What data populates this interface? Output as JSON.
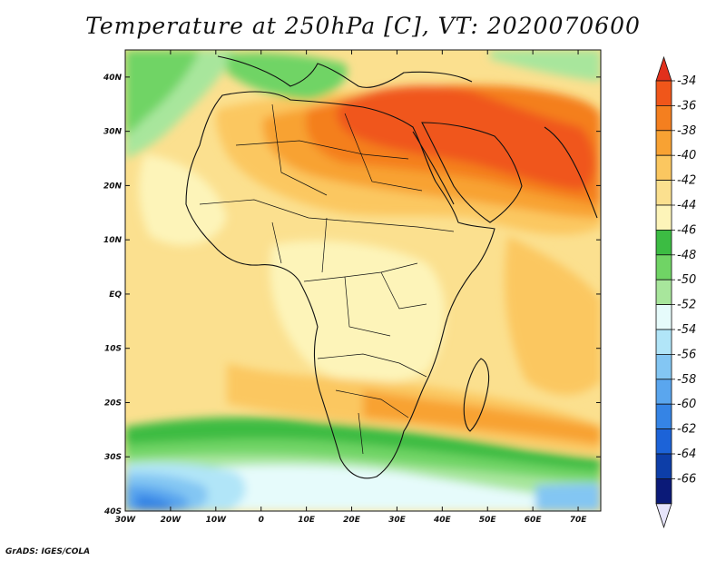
{
  "title": "Temperature at 250hPa [C], VT: 2020070600",
  "credit": "GrADS: IGES/COLA",
  "map": {
    "lon_range": [
      -30,
      75
    ],
    "lat_range": [
      -40,
      45
    ],
    "x_ticks": [
      "30W",
      "20W",
      "10W",
      "0",
      "10E",
      "20E",
      "30E",
      "40E",
      "50E",
      "60E",
      "70E"
    ],
    "y_ticks": [
      "40N",
      "30N",
      "20N",
      "10N",
      "EQ",
      "10S",
      "20S",
      "30S",
      "40S"
    ]
  },
  "colorbar": {
    "labels": [
      "-34",
      "-36",
      "-38",
      "-40",
      "-42",
      "-44",
      "-46",
      "-48",
      "-50",
      "-52",
      "-54",
      "-56",
      "-58",
      "-60",
      "-62",
      "-64",
      "-66"
    ],
    "colors": [
      "#f0561a",
      "#f47f1f",
      "#f8a233",
      "#fbc760",
      "#fbe08f",
      "#fdf4b9",
      "#3cbc43",
      "#70d465",
      "#a8e69c",
      "#e6fbfb",
      "#b1e5f8",
      "#83c6f3",
      "#5aa6ee",
      "#3584e5",
      "#1c63d8",
      "#0d3ea8",
      "#0b1a78"
    ],
    "top_arrow_color": "#e1301c",
    "bottom_arrow_color": "#e6e4fb"
  }
}
